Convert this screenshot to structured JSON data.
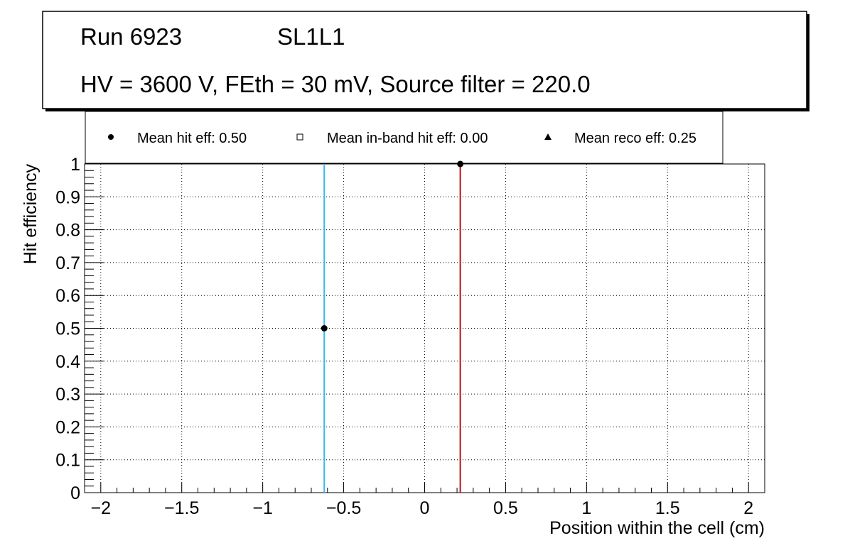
{
  "chart_data": {
    "type": "scatter",
    "title_lines": [
      "Run 6923",
      "SL1L1",
      "HV = 3600 V, FEth = 30 mV, Source filter = 220.0"
    ],
    "legend": [
      {
        "marker": "circle",
        "label": "Mean hit  eff: 0.50"
      },
      {
        "marker": "open-square",
        "label": "Mean in-band hit eff: 0.00"
      },
      {
        "marker": "triangle",
        "label": "Mean reco eff: 0.25"
      }
    ],
    "xlabel": "Position within the cell (cm)",
    "ylabel": "Hit efficiency",
    "xlim": [
      -2.1,
      2.1
    ],
    "ylim": [
      0,
      1
    ],
    "x_ticks": [
      -2,
      -1.5,
      -1,
      -0.5,
      0,
      0.5,
      1,
      1.5,
      2
    ],
    "x_tick_labels": [
      "−2",
      "−1.5",
      "−1",
      "−0.5",
      "0",
      "0.5",
      "1",
      "1.5",
      "2"
    ],
    "y_ticks": [
      0,
      0.1,
      0.2,
      0.3,
      0.4,
      0.5,
      0.6,
      0.7,
      0.8,
      0.9,
      1
    ],
    "y_tick_labels": [
      "0",
      "0.1",
      "0.2",
      "0.3",
      "0.4",
      "0.5",
      "0.6",
      "0.7",
      "0.8",
      "0.9",
      "1"
    ],
    "grid": true,
    "series": [
      {
        "name": "Hit efficiency",
        "marker": "circle",
        "color": "#000000",
        "points": [
          {
            "x": -0.62,
            "y": 0.5
          },
          {
            "x": 0.22,
            "y": 1.0
          }
        ]
      }
    ],
    "vertical_lines": [
      {
        "x": -0.62,
        "color": "#33bbee"
      },
      {
        "x": 0.22,
        "color": "#bb1111"
      }
    ]
  }
}
